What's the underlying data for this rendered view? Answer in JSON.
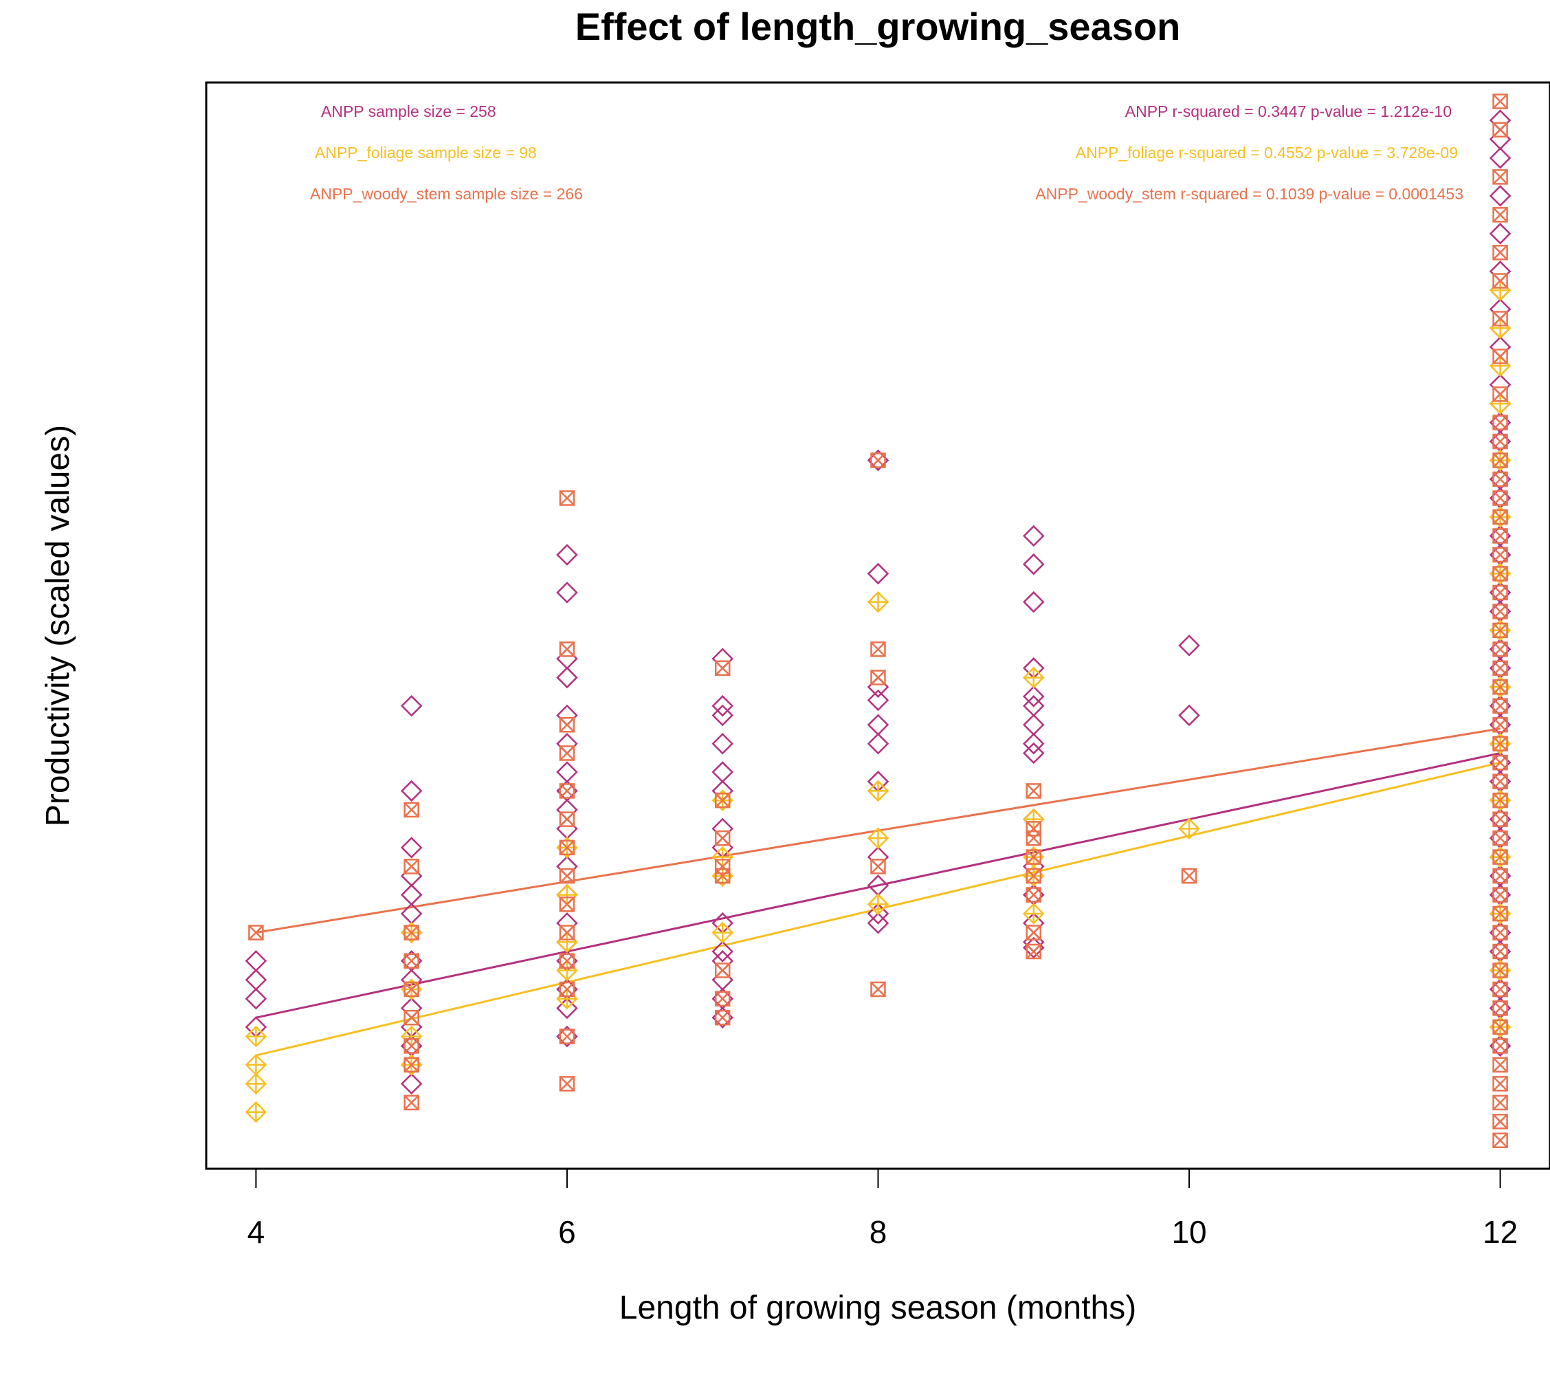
{
  "colors": {
    "ANPP": "#B5307F",
    "ANPP_foliage": "#F7BF22",
    "ANPP_woody_stem": "#EA724D"
  },
  "chart_data": {
    "type": "scatter",
    "title": "Effect of length_growing_season",
    "xlabel": "Length of growing season (months)",
    "ylabel": "Productivity (scaled values)",
    "xlim": [
      3.68,
      12.32
    ],
    "ylim": [
      -2.15,
      3.6
    ],
    "x_ticks": [
      4,
      6,
      8,
      10,
      12
    ],
    "y_ticks": [],
    "grid": false,
    "annotations_left": [
      {
        "series": "ANPP",
        "text": "ANPP sample size = 258"
      },
      {
        "series": "ANPP_foliage",
        "text": "ANPP_foliage sample size = 98"
      },
      {
        "series": "ANPP_woody_stem",
        "text": "ANPP_woody_stem sample size = 266"
      }
    ],
    "annotations_right": [
      {
        "series": "ANPP",
        "text": "ANPP r-squared =  0.3447 p-value =  1.212e-10"
      },
      {
        "series": "ANPP_foliage",
        "text": "ANPP_foliage r-squared =  0.4552 p-value =  3.728e-09"
      },
      {
        "series": "ANPP_woody_stem",
        "text": "ANPP_woody_stem r-squared =  0.1039 p-value =  0.0001453"
      }
    ],
    "series": [
      {
        "key": "ANPP",
        "marker": "diamond",
        "fit": [
          [
            4,
            -1.35
          ],
          [
            12,
            0.05
          ]
        ],
        "points": [
          [
            4,
            -1.05
          ],
          [
            4,
            -1.15
          ],
          [
            4,
            -1.25
          ],
          [
            4,
            -1.4
          ],
          [
            5,
            0.3
          ],
          [
            5,
            -0.15
          ],
          [
            5,
            -0.45
          ],
          [
            5,
            -0.6
          ],
          [
            5,
            -0.7
          ],
          [
            5,
            -0.8
          ],
          [
            5,
            -0.9
          ],
          [
            5,
            -1.05
          ],
          [
            5,
            -1.15
          ],
          [
            5,
            -1.3
          ],
          [
            5,
            -1.4
          ],
          [
            5,
            -1.5
          ],
          [
            5,
            -1.6
          ],
          [
            5,
            -1.7
          ],
          [
            6,
            1.1
          ],
          [
            6,
            0.9
          ],
          [
            6,
            0.55
          ],
          [
            6,
            0.45
          ],
          [
            6,
            0.25
          ],
          [
            6,
            0.1
          ],
          [
            6,
            -0.05
          ],
          [
            6,
            -0.15
          ],
          [
            6,
            -0.25
          ],
          [
            6,
            -0.35
          ],
          [
            6,
            -0.55
          ],
          [
            6,
            -0.7
          ],
          [
            6,
            -0.85
          ],
          [
            6,
            -0.95
          ],
          [
            6,
            -1.05
          ],
          [
            6,
            -1.2
          ],
          [
            6,
            -1.3
          ],
          [
            6,
            -1.45
          ],
          [
            7,
            0.55
          ],
          [
            7,
            0.3
          ],
          [
            7,
            0.25
          ],
          [
            7,
            0.1
          ],
          [
            7,
            -0.05
          ],
          [
            7,
            -0.15
          ],
          [
            7,
            -0.35
          ],
          [
            7,
            -0.45
          ],
          [
            7,
            -0.6
          ],
          [
            7,
            -0.85
          ],
          [
            7,
            -1.0
          ],
          [
            7,
            -1.05
          ],
          [
            7,
            -1.15
          ],
          [
            7,
            -1.25
          ],
          [
            7,
            -1.35
          ],
          [
            8,
            1.6
          ],
          [
            8,
            1.0
          ],
          [
            8,
            0.4
          ],
          [
            8,
            0.33
          ],
          [
            8,
            0.2
          ],
          [
            8,
            0.1
          ],
          [
            8,
            -0.1
          ],
          [
            8,
            -0.5
          ],
          [
            8,
            -0.65
          ],
          [
            8,
            -0.8
          ],
          [
            8,
            -0.85
          ],
          [
            9,
            1.2
          ],
          [
            9,
            1.05
          ],
          [
            9,
            0.85
          ],
          [
            9,
            0.5
          ],
          [
            9,
            0.35
          ],
          [
            9,
            0.3
          ],
          [
            9,
            0.2
          ],
          [
            9,
            0.1
          ],
          [
            9,
            0.05
          ],
          [
            9,
            -0.3
          ],
          [
            9,
            -0.55
          ],
          [
            9,
            -0.7
          ],
          [
            9,
            -0.85
          ],
          [
            9,
            -0.95
          ],
          [
            9,
            -0.98
          ],
          [
            10,
            0.62
          ],
          [
            10,
            0.25
          ],
          [
            12,
            3.4
          ],
          [
            12,
            3.3
          ],
          [
            12,
            3.2
          ],
          [
            12,
            3.0
          ],
          [
            12,
            2.8
          ],
          [
            12,
            2.6
          ],
          [
            12,
            2.5
          ],
          [
            12,
            2.4
          ],
          [
            12,
            2.3
          ],
          [
            12,
            2.2
          ],
          [
            12,
            2.0
          ],
          [
            12,
            1.9
          ],
          [
            12,
            1.8
          ],
          [
            12,
            1.7
          ],
          [
            12,
            1.6
          ],
          [
            12,
            1.5
          ],
          [
            12,
            1.4
          ],
          [
            12,
            1.3
          ],
          [
            12,
            1.2
          ],
          [
            12,
            1.1
          ],
          [
            12,
            1.0
          ],
          [
            12,
            0.9
          ],
          [
            12,
            0.8
          ],
          [
            12,
            0.7
          ],
          [
            12,
            0.6
          ],
          [
            12,
            0.5
          ],
          [
            12,
            0.4
          ],
          [
            12,
            0.3
          ],
          [
            12,
            0.2
          ],
          [
            12,
            0.1
          ],
          [
            12,
            0.0
          ],
          [
            12,
            -0.1
          ],
          [
            12,
            -0.2
          ],
          [
            12,
            -0.3
          ],
          [
            12,
            -0.4
          ],
          [
            12,
            -0.5
          ],
          [
            12,
            -0.6
          ],
          [
            12,
            -0.7
          ],
          [
            12,
            -0.8
          ],
          [
            12,
            -0.9
          ],
          [
            12,
            -1.0
          ],
          [
            12,
            -1.1
          ],
          [
            12,
            -1.2
          ],
          [
            12,
            -1.3
          ],
          [
            12,
            -1.4
          ],
          [
            12,
            -1.5
          ]
        ]
      },
      {
        "key": "ANPP_foliage",
        "marker": "diamond-plus",
        "fit": [
          [
            4,
            -1.55
          ],
          [
            12,
            0.0
          ]
        ],
        "points": [
          [
            4,
            -1.45
          ],
          [
            4,
            -1.6
          ],
          [
            4,
            -1.7
          ],
          [
            4,
            -1.85
          ],
          [
            5,
            -0.9
          ],
          [
            5,
            -1.2
          ],
          [
            5,
            -1.45
          ],
          [
            5,
            -1.6
          ],
          [
            6,
            -0.45
          ],
          [
            6,
            -0.7
          ],
          [
            6,
            -0.95
          ],
          [
            6,
            -1.1
          ],
          [
            6,
            -1.25
          ],
          [
            7,
            -0.2
          ],
          [
            7,
            -0.5
          ],
          [
            7,
            -0.6
          ],
          [
            7,
            -0.9
          ],
          [
            8,
            0.85
          ],
          [
            8,
            -0.15
          ],
          [
            8,
            -0.4
          ],
          [
            8,
            -0.75
          ],
          [
            9,
            0.45
          ],
          [
            9,
            -0.3
          ],
          [
            9,
            -0.5
          ],
          [
            9,
            -0.6
          ],
          [
            9,
            -0.8
          ],
          [
            10,
            -0.35
          ],
          [
            12,
            2.5
          ],
          [
            12,
            2.3
          ],
          [
            12,
            2.1
          ],
          [
            12,
            1.9
          ],
          [
            12,
            1.6
          ],
          [
            12,
            1.3
          ],
          [
            12,
            1.0
          ],
          [
            12,
            0.7
          ],
          [
            12,
            0.4
          ],
          [
            12,
            0.1
          ],
          [
            12,
            -0.2
          ],
          [
            12,
            -0.5
          ],
          [
            12,
            -0.8
          ],
          [
            12,
            -1.1
          ],
          [
            12,
            -1.4
          ]
        ]
      },
      {
        "key": "ANPP_woody_stem",
        "marker": "square-x",
        "fit": [
          [
            4,
            -0.9
          ],
          [
            12,
            0.18
          ]
        ],
        "points": [
          [
            4,
            -0.9
          ],
          [
            5,
            -0.25
          ],
          [
            5,
            -0.55
          ],
          [
            5,
            -0.9
          ],
          [
            5,
            -1.05
          ],
          [
            5,
            -1.2
          ],
          [
            5,
            -1.35
          ],
          [
            5,
            -1.5
          ],
          [
            5,
            -1.6
          ],
          [
            5,
            -1.8
          ],
          [
            6,
            1.4
          ],
          [
            6,
            0.6
          ],
          [
            6,
            0.2
          ],
          [
            6,
            0.05
          ],
          [
            6,
            -0.15
          ],
          [
            6,
            -0.3
          ],
          [
            6,
            -0.45
          ],
          [
            6,
            -0.6
          ],
          [
            6,
            -0.75
          ],
          [
            6,
            -0.9
          ],
          [
            6,
            -1.05
          ],
          [
            6,
            -1.2
          ],
          [
            6,
            -1.45
          ],
          [
            6,
            -1.7
          ],
          [
            7,
            0.5
          ],
          [
            7,
            -0.2
          ],
          [
            7,
            -0.4
          ],
          [
            7,
            -0.55
          ],
          [
            7,
            -0.6
          ],
          [
            7,
            -1.1
          ],
          [
            7,
            -1.25
          ],
          [
            7,
            -1.35
          ],
          [
            8,
            1.6
          ],
          [
            8,
            0.6
          ],
          [
            8,
            0.45
          ],
          [
            8,
            -0.55
          ],
          [
            8,
            -1.2
          ],
          [
            9,
            -0.15
          ],
          [
            9,
            -0.35
          ],
          [
            9,
            -0.4
          ],
          [
            9,
            -0.5
          ],
          [
            9,
            -0.6
          ],
          [
            9,
            -0.7
          ],
          [
            9,
            -0.9
          ],
          [
            9,
            -1.0
          ],
          [
            10,
            -0.6
          ],
          [
            12,
            3.5
          ],
          [
            12,
            3.35
          ],
          [
            12,
            3.1
          ],
          [
            12,
            2.9
          ],
          [
            12,
            2.7
          ],
          [
            12,
            2.55
          ],
          [
            12,
            2.35
          ],
          [
            12,
            2.15
          ],
          [
            12,
            1.95
          ],
          [
            12,
            1.8
          ],
          [
            12,
            1.7
          ],
          [
            12,
            1.6
          ],
          [
            12,
            1.5
          ],
          [
            12,
            1.4
          ],
          [
            12,
            1.3
          ],
          [
            12,
            1.2
          ],
          [
            12,
            1.1
          ],
          [
            12,
            1.0
          ],
          [
            12,
            0.9
          ],
          [
            12,
            0.8
          ],
          [
            12,
            0.7
          ],
          [
            12,
            0.6
          ],
          [
            12,
            0.5
          ],
          [
            12,
            0.4
          ],
          [
            12,
            0.3
          ],
          [
            12,
            0.2
          ],
          [
            12,
            0.1
          ],
          [
            12,
            0.0
          ],
          [
            12,
            -0.1
          ],
          [
            12,
            -0.2
          ],
          [
            12,
            -0.3
          ],
          [
            12,
            -0.4
          ],
          [
            12,
            -0.5
          ],
          [
            12,
            -0.6
          ],
          [
            12,
            -0.7
          ],
          [
            12,
            -0.8
          ],
          [
            12,
            -0.9
          ],
          [
            12,
            -1.0
          ],
          [
            12,
            -1.1
          ],
          [
            12,
            -1.2
          ],
          [
            12,
            -1.3
          ],
          [
            12,
            -1.4
          ],
          [
            12,
            -1.5
          ],
          [
            12,
            -1.6
          ],
          [
            12,
            -1.7
          ],
          [
            12,
            -1.8
          ],
          [
            12,
            -1.9
          ],
          [
            12,
            -2.0
          ]
        ]
      }
    ]
  }
}
